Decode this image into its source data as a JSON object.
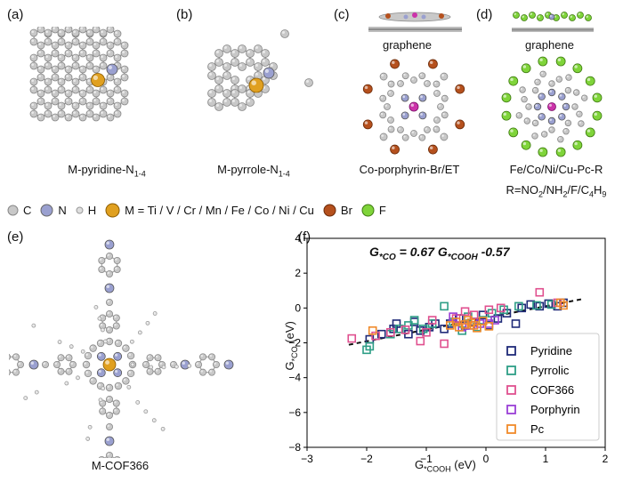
{
  "panels": {
    "a": {
      "label": "(a)",
      "caption_main": "M-pyridine-N",
      "caption_sub": "1-4"
    },
    "b": {
      "label": "(b)",
      "caption_main": "M-pyrrole-N",
      "caption_sub": "1-4"
    },
    "c": {
      "label": "(c)",
      "substrate": "graphene",
      "caption": "Co-porphyrin-Br/ET"
    },
    "d": {
      "label": "(d)",
      "substrate": "graphene",
      "caption_line1": "Fe/Co/Ni/Cu-Pc-R",
      "caption_line2_parts": [
        "R=NO",
        "2",
        "/NH",
        "2",
        "/F/C",
        "4",
        "H",
        "9"
      ]
    },
    "e": {
      "label": "(e)",
      "caption": "M-COF366"
    },
    "f": {
      "label": "(f)"
    }
  },
  "atom_legend": [
    {
      "symbol": "C",
      "color": "#c8c8c8"
    },
    {
      "symbol": "N",
      "color": "#9aa0d0"
    },
    {
      "symbol": "H",
      "color": "#dedede"
    },
    {
      "symbol": "M = Ti / V / Cr / Mn / Fe / Co / Ni / Cu",
      "color": "#e0a020"
    },
    {
      "symbol": "Br",
      "color": "#b5501d"
    },
    {
      "symbol": "F",
      "color": "#7fd43a"
    }
  ],
  "chart_data": {
    "type": "scatter",
    "equation": {
      "lhs_main": "G",
      "lhs_sub": "*CO",
      "mid": " = 0.67 G",
      "rhs_sub": "*COOH",
      "tail": " -0.57"
    },
    "xlabel_main": "G",
    "xlabel_sub": "*COOH",
    "xlabel_tail": " (eV)",
    "ylabel_main": "G",
    "ylabel_sub": "*CO",
    "ylabel_tail": " (eV)",
    "xlim": [
      -3,
      2
    ],
    "ylim": [
      -8,
      4
    ],
    "xticks": [
      -3,
      -2,
      -1,
      0,
      1,
      2
    ],
    "yticks": [
      -8,
      -6,
      -4,
      -2,
      0,
      2,
      4
    ],
    "fit": {
      "slope": 0.67,
      "intercept": -0.57,
      "x_range": [
        -2.3,
        1.6
      ]
    },
    "legend_position": "bottom-right",
    "series": [
      {
        "name": "Pyridine",
        "color": "#1f2a78",
        "points": [
          [
            -1.95,
            -1.8
          ],
          [
            -1.75,
            -1.5
          ],
          [
            -1.55,
            -1.2
          ],
          [
            -1.3,
            -1.5
          ],
          [
            -1.2,
            -0.8
          ],
          [
            -1.1,
            -1.3
          ],
          [
            -0.95,
            -1.1
          ],
          [
            -0.85,
            -0.9
          ],
          [
            -0.7,
            -1.2
          ],
          [
            -0.6,
            -0.9
          ],
          [
            -0.45,
            -0.6
          ],
          [
            -0.35,
            -1.0
          ],
          [
            -0.2,
            -0.8
          ],
          [
            -0.05,
            -0.4
          ],
          [
            0.05,
            -1.0
          ],
          [
            0.2,
            -0.6
          ],
          [
            0.35,
            -0.3
          ],
          [
            0.5,
            -0.9
          ],
          [
            0.6,
            0.0
          ],
          [
            0.75,
            0.2
          ],
          [
            0.9,
            0.1
          ],
          [
            1.05,
            0.25
          ],
          [
            1.2,
            0.1
          ],
          [
            1.3,
            0.3
          ],
          [
            -1.5,
            -0.9
          ]
        ]
      },
      {
        "name": "Pyrrolic",
        "color": "#2e9e86",
        "points": [
          [
            -2.0,
            -2.4
          ],
          [
            -1.95,
            -2.2
          ],
          [
            -1.6,
            -1.5
          ],
          [
            -1.45,
            -1.2
          ],
          [
            -1.3,
            -1.0
          ],
          [
            -1.2,
            -0.7
          ],
          [
            -1.05,
            -1.2
          ],
          [
            -0.9,
            -0.9
          ],
          [
            -0.7,
            0.1
          ],
          [
            -0.55,
            -0.8
          ],
          [
            -0.4,
            -1.3
          ],
          [
            -0.3,
            -0.5
          ],
          [
            -0.15,
            -1.1
          ],
          [
            -0.05,
            -0.7
          ],
          [
            0.1,
            -0.3
          ],
          [
            0.3,
            -0.1
          ],
          [
            0.55,
            0.1
          ],
          [
            0.85,
            0.15
          ],
          [
            1.1,
            0.2
          ]
        ]
      },
      {
        "name": "COF366",
        "color": "#e0508f",
        "points": [
          [
            -2.25,
            -1.75
          ],
          [
            -1.85,
            -1.6
          ],
          [
            -1.6,
            -1.4
          ],
          [
            -1.35,
            -1.25
          ],
          [
            -1.0,
            -1.4
          ],
          [
            -0.9,
            -0.7
          ],
          [
            -0.7,
            -2.05
          ],
          [
            -0.5,
            -0.6
          ],
          [
            -0.35,
            -0.2
          ],
          [
            -0.2,
            -0.4
          ],
          [
            0.05,
            -0.1
          ],
          [
            0.25,
            0.0
          ],
          [
            0.9,
            0.9
          ],
          [
            1.2,
            0.3
          ],
          [
            -1.1,
            -1.9
          ]
        ]
      },
      {
        "name": "Porphyrin",
        "color": "#9a3fd6",
        "points": [
          [
            -0.55,
            -0.5
          ],
          [
            -0.4,
            -1.1
          ],
          [
            -0.25,
            -1.0
          ],
          [
            -0.1,
            -0.9
          ],
          [
            0.05,
            -0.9
          ],
          [
            0.15,
            -0.7
          ]
        ]
      },
      {
        "name": "Pc",
        "color": "#f08a2a",
        "points": [
          [
            -1.9,
            -1.3
          ],
          [
            -0.6,
            -1.0
          ],
          [
            -0.45,
            -1.1
          ],
          [
            -0.35,
            -0.95
          ],
          [
            -0.25,
            -0.85
          ],
          [
            -0.15,
            -1.15
          ],
          [
            -0.05,
            -0.75
          ],
          [
            0.05,
            -1.05
          ],
          [
            -0.5,
            -0.8
          ],
          [
            -0.3,
            -0.7
          ],
          [
            -0.2,
            -1.0
          ],
          [
            1.3,
            0.15
          ],
          [
            1.25,
            0.3
          ]
        ]
      }
    ]
  }
}
